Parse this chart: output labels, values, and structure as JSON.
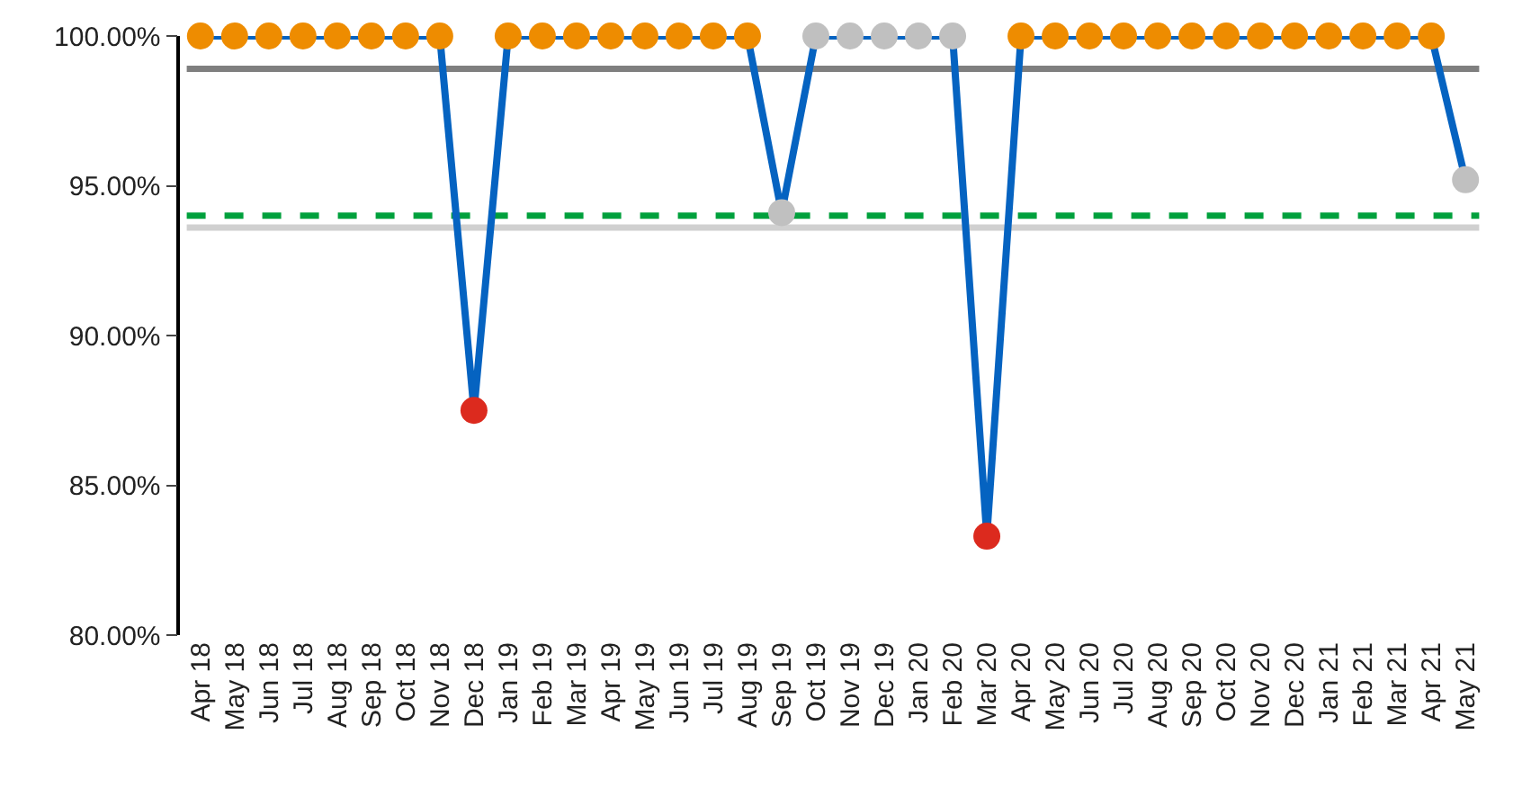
{
  "chart_data": {
    "type": "line",
    "categories": [
      "Apr 18",
      "May 18",
      "Jun 18",
      "Jul 18",
      "Aug 18",
      "Sep 18",
      "Oct 18",
      "Nov 18",
      "Dec 18",
      "Jan 19",
      "Feb 19",
      "Mar 19",
      "Apr 19",
      "May 19",
      "Jun 19",
      "Jul 19",
      "Aug 19",
      "Sep 19",
      "Oct 19",
      "Nov 19",
      "Dec 19",
      "Jan 20",
      "Feb 20",
      "Mar 20",
      "Apr 20",
      "May 20",
      "Jun 20",
      "Jul 20",
      "Aug 20",
      "Sep 20",
      "Oct 20",
      "Nov 20",
      "Dec 20",
      "Jan 21",
      "Feb 21",
      "Mar 21",
      "Apr 21",
      "May 21"
    ],
    "series": [
      {
        "color": "#0563c1",
        "values": [
          100,
          100,
          100,
          100,
          100,
          100,
          100,
          100,
          87.5,
          100,
          100,
          100,
          100,
          100,
          100,
          100,
          100,
          94.1,
          100,
          100,
          100,
          100,
          100,
          83.3,
          100,
          100,
          100,
          100,
          100,
          100,
          100,
          100,
          100,
          100,
          100,
          100,
          100,
          95.2
        ],
        "colors": [
          "#ee8c00",
          "#ee8c00",
          "#ee8c00",
          "#ee8c00",
          "#ee8c00",
          "#ee8c00",
          "#ee8c00",
          "#ee8c00",
          "#dc2a1e",
          "#ee8c00",
          "#ee8c00",
          "#ee8c00",
          "#ee8c00",
          "#ee8c00",
          "#ee8c00",
          "#ee8c00",
          "#ee8c00",
          "#c0c0c0",
          "#c0c0c0",
          "#c0c0c0",
          "#c0c0c0",
          "#c0c0c0",
          "#c0c0c0",
          "#dc2a1e",
          "#ee8c00",
          "#ee8c00",
          "#ee8c00",
          "#ee8c00",
          "#ee8c00",
          "#ee8c00",
          "#ee8c00",
          "#ee8c00",
          "#ee8c00",
          "#ee8c00",
          "#ee8c00",
          "#ee8c00",
          "#ee8c00",
          "#c0c0c0"
        ]
      }
    ],
    "ylim": [
      80,
      100
    ],
    "yticks": [
      {
        "value": 80,
        "label": "80.00%"
      },
      {
        "value": 85,
        "label": "85.00%"
      },
      {
        "value": 90,
        "label": "90.00%"
      },
      {
        "value": 95,
        "label": "95.00%"
      },
      {
        "value": 100,
        "label": "100.00%"
      }
    ],
    "ref_lines": [
      {
        "axis": "y",
        "value": 98.9,
        "color": "#7f7f7f",
        "line_style": "solid"
      },
      {
        "axis": "y",
        "value": 94.0,
        "color": "#00a03c",
        "line_style": "dashed"
      },
      {
        "axis": "y",
        "value": 93.6,
        "color": "#d0d0d0",
        "line_style": "solid"
      }
    ],
    "marker": "circle",
    "line_style": "solid"
  }
}
